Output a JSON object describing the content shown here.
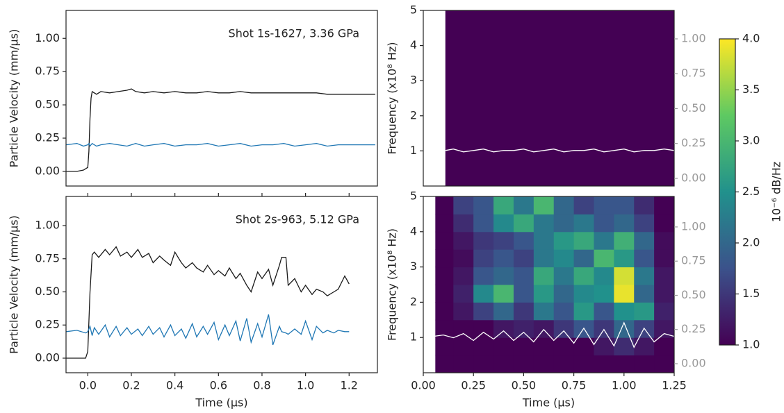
{
  "chart_data": [
    {
      "type": "line",
      "annotation": "Shot 1s-1627, 3.36 GPa",
      "ylabel": "Particle Velocity (mm/μs)",
      "xlim": [
        -0.1,
        1.33
      ],
      "ylim": [
        -0.11,
        1.21
      ],
      "yticks": [
        {
          "value": 0,
          "label": "0.00"
        },
        0.25,
        {
          "value": 0.5,
          "label": "0.50"
        },
        0.75,
        {
          "value": 1,
          "label": "1.00"
        }
      ],
      "x": [
        -0.1,
        -0.05,
        -0.02,
        0,
        0.005,
        0.01,
        0.015,
        0.02,
        0.04,
        0.06,
        0.1,
        0.14,
        0.18,
        0.2,
        0.22,
        0.26,
        0.3,
        0.35,
        0.4,
        0.45,
        0.5,
        0.55,
        0.6,
        0.65,
        0.7,
        0.75,
        0.8,
        0.85,
        0.9,
        0.95,
        1.0,
        1.05,
        1.1,
        1.15,
        1.2,
        1.32
      ],
      "series": [
        {
          "color": "#1a1a1a",
          "values": [
            0,
            0,
            0.01,
            0.03,
            0.15,
            0.4,
            0.55,
            0.6,
            0.58,
            0.6,
            0.59,
            0.6,
            0.61,
            0.62,
            0.6,
            0.59,
            0.6,
            0.59,
            0.6,
            0.59,
            0.59,
            0.6,
            0.59,
            0.59,
            0.6,
            0.59,
            0.59,
            0.59,
            0.59,
            0.59,
            0.59,
            0.59,
            0.58,
            0.58,
            0.58,
            0.58
          ]
        },
        {
          "color": "#1f77b4",
          "values": [
            0.2,
            0.21,
            0.19,
            0.2,
            0.21,
            0.19,
            0.2,
            0.21,
            0.19,
            0.2,
            0.21,
            0.2,
            0.19,
            0.2,
            0.21,
            0.19,
            0.2,
            0.21,
            0.19,
            0.2,
            0.2,
            0.21,
            0.19,
            0.2,
            0.21,
            0.19,
            0.2,
            0.2,
            0.21,
            0.19,
            0.2,
            0.21,
            0.19,
            0.2,
            0.2,
            0.2
          ]
        }
      ]
    },
    {
      "type": "heatmap",
      "ylabel": "Frequency (x10⁸ Hz)",
      "colormap": "viridis",
      "zlim": [
        1,
        4
      ],
      "xlim": [
        0,
        1.25
      ],
      "ylim": [
        0,
        5
      ],
      "yticks": [
        1,
        2,
        3,
        4,
        5
      ],
      "y2lim": [
        -0.055,
        1.204
      ],
      "y2ticks": [
        {
          "value": 0,
          "label": "0.00"
        },
        0.25,
        {
          "value": 0.5,
          "label": "0.50"
        },
        0.75,
        {
          "value": 1,
          "label": "1.00"
        }
      ],
      "x_edges": [
        0.11,
        1.25
      ],
      "y_edges": [
        0,
        5
      ],
      "z": [
        [
          1.0
        ]
      ],
      "x": [
        0.11,
        0.15,
        0.2,
        0.25,
        0.3,
        0.35,
        0.4,
        0.45,
        0.5,
        0.55,
        0.6,
        0.65,
        0.7,
        0.75,
        0.8,
        0.85,
        0.9,
        0.95,
        1.0,
        1.05,
        1.1,
        1.15,
        1.2,
        1.25
      ],
      "series": [
        {
          "color": "#ffffff",
          "axis": "y2",
          "values": [
            0.2,
            0.21,
            0.19,
            0.2,
            0.21,
            0.19,
            0.2,
            0.2,
            0.21,
            0.19,
            0.2,
            0.21,
            0.19,
            0.2,
            0.2,
            0.21,
            0.19,
            0.2,
            0.21,
            0.19,
            0.2,
            0.2,
            0.21,
            0.2
          ]
        }
      ]
    },
    {
      "type": "line",
      "annotation": "Shot 2s-963, 5.12 GPa",
      "ylabel": "Particle Velocity (mm/μs)",
      "xlabel": "Time (μs)",
      "xlim": [
        -0.1,
        1.33
      ],
      "ylim": [
        -0.11,
        1.22
      ],
      "xticks": [
        {
          "value": 0,
          "label": "0.0"
        },
        0.2,
        0.4,
        0.6,
        0.8,
        {
          "value": 1,
          "label": "1.0"
        },
        1.2
      ],
      "yticks": [
        {
          "value": 0,
          "label": "0.00"
        },
        0.25,
        {
          "value": 0.5,
          "label": "0.50"
        },
        0.75,
        {
          "value": 1,
          "label": "1.00"
        }
      ],
      "x": [
        -0.1,
        -0.05,
        -0.01,
        0,
        0.01,
        0.02,
        0.03,
        0.05,
        0.08,
        0.1,
        0.13,
        0.15,
        0.18,
        0.2,
        0.23,
        0.25,
        0.28,
        0.3,
        0.33,
        0.35,
        0.38,
        0.4,
        0.43,
        0.45,
        0.48,
        0.5,
        0.53,
        0.55,
        0.58,
        0.6,
        0.63,
        0.65,
        0.68,
        0.7,
        0.73,
        0.75,
        0.78,
        0.8,
        0.83,
        0.85,
        0.88,
        0.89,
        0.91,
        0.92,
        0.95,
        0.98,
        1.0,
        1.03,
        1.05,
        1.08,
        1.1,
        1.13,
        1.15,
        1.18,
        1.2
      ],
      "series": [
        {
          "color": "#1a1a1a",
          "values": [
            0,
            0,
            0,
            0.05,
            0.5,
            0.78,
            0.8,
            0.76,
            0.82,
            0.78,
            0.84,
            0.77,
            0.8,
            0.76,
            0.82,
            0.76,
            0.79,
            0.72,
            0.77,
            0.74,
            0.7,
            0.8,
            0.72,
            0.68,
            0.72,
            0.68,
            0.65,
            0.7,
            0.63,
            0.66,
            0.62,
            0.68,
            0.6,
            0.64,
            0.55,
            0.5,
            0.65,
            0.6,
            0.67,
            0.55,
            0.7,
            0.76,
            0.76,
            0.55,
            0.6,
            0.5,
            0.55,
            0.48,
            0.52,
            0.5,
            0.47,
            0.5,
            0.52,
            0.62,
            0.56
          ]
        },
        {
          "color": "#1f77b4",
          "values": [
            0.2,
            0.21,
            0.19,
            0.2,
            0.24,
            0.17,
            0.23,
            0.18,
            0.25,
            0.16,
            0.24,
            0.17,
            0.23,
            0.18,
            0.22,
            0.17,
            0.24,
            0.18,
            0.23,
            0.16,
            0.25,
            0.17,
            0.22,
            0.15,
            0.26,
            0.16,
            0.24,
            0.18,
            0.27,
            0.14,
            0.25,
            0.17,
            0.28,
            0.13,
            0.3,
            0.12,
            0.26,
            0.16,
            0.33,
            0.1,
            0.24,
            0.2,
            0.19,
            0.18,
            0.22,
            0.18,
            0.28,
            0.14,
            0.24,
            0.19,
            0.21,
            0.19,
            0.21,
            0.2,
            0.2
          ]
        }
      ]
    },
    {
      "type": "heatmap",
      "ylabel": "Frequency (x10⁸ Hz)",
      "xlabel": "Time (μs)",
      "colormap": "viridis",
      "zlim": [
        1,
        4
      ],
      "xlim": [
        0,
        1.25
      ],
      "ylim": [
        0,
        5
      ],
      "yticks": [
        1,
        2,
        3,
        4,
        5
      ],
      "xticks": [
        {
          "value": 0,
          "label": "0.00"
        },
        0.25,
        {
          "value": 0.5,
          "label": "0.50"
        },
        0.75,
        {
          "value": 1,
          "label": "1.00"
        },
        1.25
      ],
      "y2lim": [
        -0.066,
        1.223
      ],
      "y2ticks": [
        {
          "value": 0,
          "label": "0.00"
        },
        0.25,
        {
          "value": 0.5,
          "label": "0.50"
        },
        0.75,
        {
          "value": 1,
          "label": "1.00"
        }
      ],
      "x_edges": [
        0.06,
        0.15,
        0.25,
        0.35,
        0.45,
        0.55,
        0.65,
        0.75,
        0.85,
        0.95,
        1.05,
        1.15,
        1.25
      ],
      "y_edges": [
        0,
        0.5,
        1,
        1.5,
        2,
        2.5,
        3,
        3.5,
        4,
        4.5,
        5
      ],
      "z": [
        [
          1,
          1,
          1,
          1,
          1,
          1,
          1,
          1,
          1,
          1,
          1,
          1
        ],
        [
          1,
          1,
          1,
          1,
          1,
          1,
          1,
          1,
          1.2,
          1.4,
          1.2,
          1
        ],
        [
          1,
          1,
          1,
          1.2,
          1.3,
          1.2,
          1.5,
          1.8,
          1.5,
          2.0,
          1.6,
          1.2
        ],
        [
          1,
          1.2,
          1.6,
          2.0,
          1.5,
          2.2,
          1.8,
          2.6,
          1.8,
          2.5,
          2.6,
          1.3
        ],
        [
          1,
          1.3,
          2.4,
          3.0,
          1.8,
          2.6,
          2.0,
          2.4,
          2.5,
          3.9,
          2.0,
          1.2
        ],
        [
          1,
          1.2,
          1.8,
          2.0,
          1.8,
          2.8,
          2.2,
          2.8,
          2.4,
          3.8,
          2.2,
          1.2
        ],
        [
          1,
          1.1,
          1.6,
          1.8,
          1.6,
          2.2,
          2.4,
          2.0,
          3.0,
          2.6,
          1.8,
          1.1
        ],
        [
          1,
          1.2,
          1.5,
          1.6,
          1.8,
          2.2,
          2.6,
          2.8,
          2.2,
          2.9,
          2.0,
          1.1
        ],
        [
          1,
          1.4,
          1.8,
          2.4,
          2.8,
          2.2,
          2.0,
          2.2,
          1.8,
          2.0,
          1.6,
          1.0
        ],
        [
          1,
          1.6,
          1.8,
          2.8,
          2.2,
          3.0,
          2.0,
          1.6,
          1.8,
          1.8,
          1.4,
          1.0
        ]
      ],
      "x": [
        0.05,
        0.1,
        0.15,
        0.2,
        0.25,
        0.3,
        0.35,
        0.4,
        0.45,
        0.5,
        0.55,
        0.6,
        0.65,
        0.7,
        0.75,
        0.8,
        0.85,
        0.9,
        0.95,
        1.0,
        1.05,
        1.1,
        1.15,
        1.2,
        1.25
      ],
      "series": [
        {
          "color": "#ffffff",
          "axis": "y2",
          "values": [
            0.2,
            0.21,
            0.19,
            0.22,
            0.17,
            0.23,
            0.18,
            0.24,
            0.17,
            0.23,
            0.16,
            0.25,
            0.17,
            0.24,
            0.15,
            0.26,
            0.14,
            0.25,
            0.13,
            0.3,
            0.12,
            0.26,
            0.16,
            0.22,
            0.2
          ]
        }
      ],
      "colorbar": {
        "label": "10⁻⁶ dB/Hz",
        "lim": [
          1,
          4
        ],
        "ticks": [
          {
            "value": 1,
            "label": "1.0"
          },
          1.5,
          {
            "value": 2,
            "label": "2.0"
          },
          2.5,
          {
            "value": 3,
            "label": "3.0"
          },
          3.5,
          {
            "value": 4,
            "label": "4.0"
          }
        ]
      }
    }
  ]
}
